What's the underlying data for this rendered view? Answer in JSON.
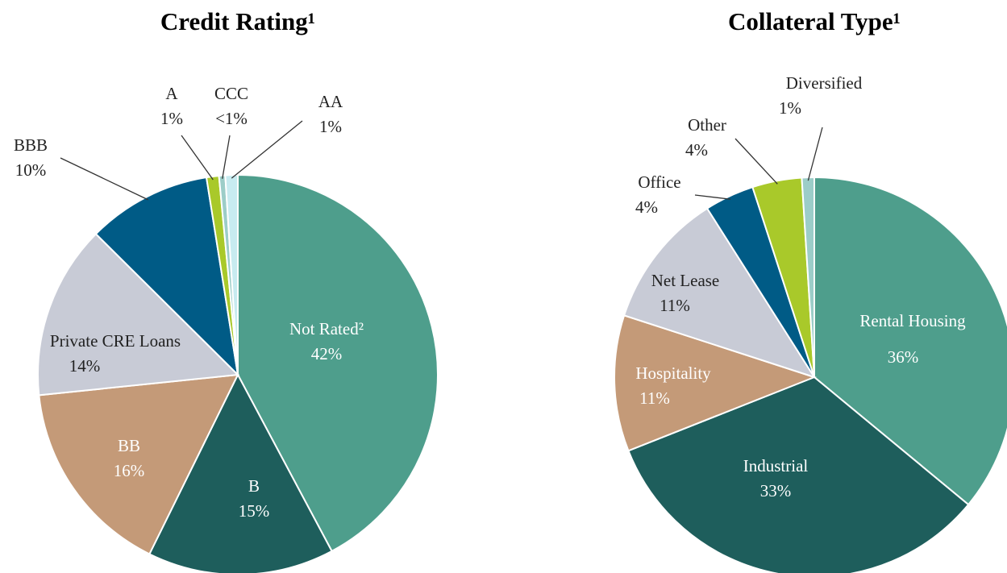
{
  "chart_data": [
    {
      "type": "pie",
      "title": "Credit Rating¹",
      "categories": [
        "Not Rated²",
        "B",
        "BB",
        "Private CRE Loans",
        "BBB",
        "A",
        "CCC",
        "AA"
      ],
      "values": [
        42,
        15,
        16,
        14,
        10,
        1,
        0.5,
        1
      ],
      "value_labels": [
        "42%",
        "15%",
        "16%",
        "14%",
        "10%",
        "1%",
        "<1%",
        "1%"
      ],
      "colors": [
        "#4e9e8c",
        "#1e5e5c",
        "#c49a78",
        "#c8cbd6",
        "#005b86",
        "#a9c92a",
        "#9ccdc8",
        "#c7ebf0"
      ]
    },
    {
      "type": "pie",
      "title": "Collateral Type¹",
      "categories": [
        "Rental Housing",
        "Industrial",
        "Hospitality",
        "Net Lease",
        "Office",
        "Other",
        "Diversified"
      ],
      "values": [
        36,
        33,
        11,
        11,
        4,
        4,
        1
      ],
      "value_labels": [
        "36%",
        "33%",
        "11%",
        "11%",
        "4%",
        "4%",
        "1%"
      ],
      "colors": [
        "#4e9e8c",
        "#1e5e5c",
        "#c49a78",
        "#c8cbd6",
        "#005b86",
        "#a9c92a",
        "#9ccdc8"
      ]
    }
  ]
}
